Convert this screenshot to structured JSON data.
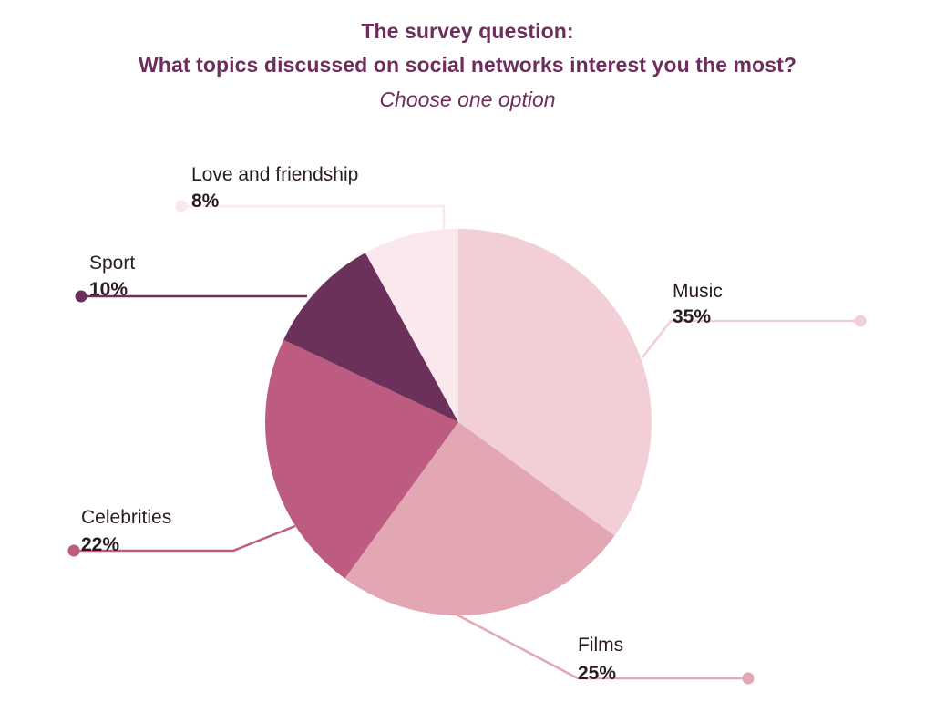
{
  "header": {
    "title_line1": "The survey question:",
    "title_line2": "What topics discussed on social networks interest you the most?",
    "subtitle": "Choose one option"
  },
  "chart_data": {
    "type": "pie",
    "start_angle_deg": 0,
    "direction": "clockwise",
    "slices": [
      {
        "label": "Music",
        "value": 35,
        "value_label": "35%",
        "color": "#f2cfd7"
      },
      {
        "label": "Films",
        "value": 25,
        "value_label": "25%",
        "color": "#e2a7b3"
      },
      {
        "label": "Celebrities",
        "value": 22,
        "value_label": "22%",
        "color": "#bd5c80"
      },
      {
        "label": "Sport",
        "value": 10,
        "value_label": "10%",
        "color": "#6b315a"
      },
      {
        "label": "Love and friendship",
        "value": 8,
        "value_label": "8%",
        "color": "#fbe8ed"
      }
    ]
  }
}
